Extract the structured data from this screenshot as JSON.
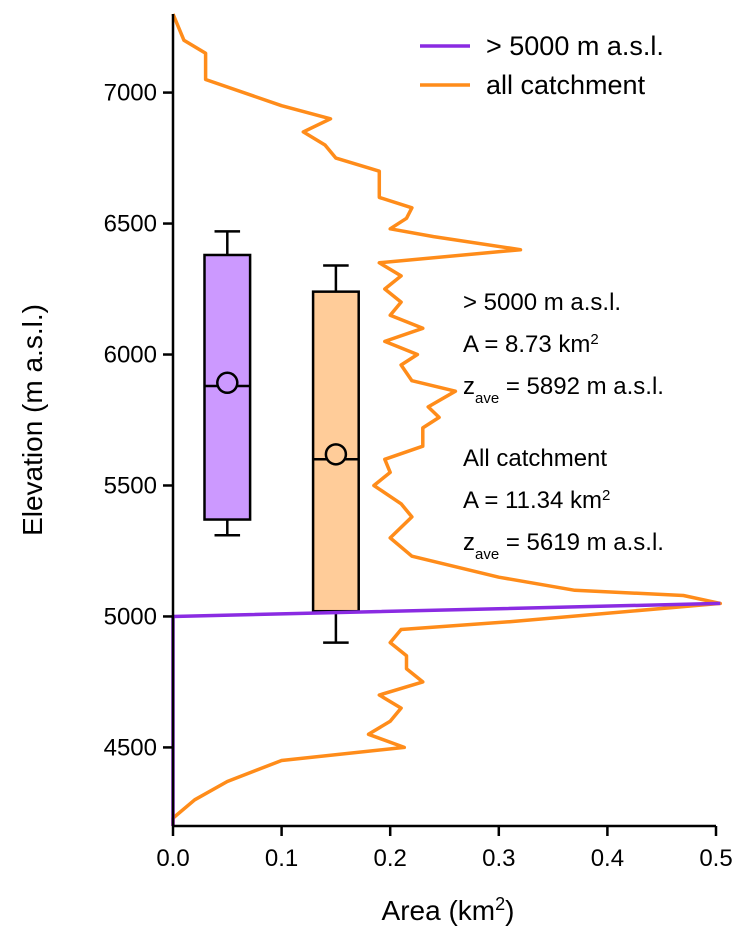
{
  "chart_data": {
    "type": "line",
    "orientation": "vertical-profile",
    "xlabel": "Area (km²)",
    "xlabel_main": "Area (km",
    "xlabel_sup": "2",
    "xlabel_close": ")",
    "ylabel": "Elevation (m a.s.l.)",
    "xlim": [
      0,
      0.5
    ],
    "ylim": [
      4200,
      7300
    ],
    "xticks": [
      0.0,
      0.1,
      0.2,
      0.3,
      0.4,
      0.5
    ],
    "xtick_labels": [
      "0.0",
      "0.1",
      "0.2",
      "0.3",
      "0.4",
      "0.5"
    ],
    "yticks": [
      4500,
      5000,
      5500,
      6000,
      6500,
      7000
    ],
    "ytick_labels": [
      "4500",
      "5000",
      "5500",
      "6000",
      "6500",
      "7000"
    ],
    "grid": false,
    "legend_position": "top-right",
    "series": [
      {
        "name": "> 5000 m a.s.l.",
        "color": "#8a2be2",
        "points": [
          [
            0.0,
            4200
          ],
          [
            0.0,
            5000
          ],
          [
            0.504,
            5050
          ]
        ]
      },
      {
        "name": "all catchment",
        "color": "#ff8c1a",
        "points": [
          [
            0.0,
            4200
          ],
          [
            0.0,
            4230
          ],
          [
            0.02,
            4300
          ],
          [
            0.05,
            4370
          ],
          [
            0.1,
            4450
          ],
          [
            0.213,
            4500
          ],
          [
            0.18,
            4550
          ],
          [
            0.2,
            4600
          ],
          [
            0.21,
            4650
          ],
          [
            0.19,
            4700
          ],
          [
            0.23,
            4750
          ],
          [
            0.215,
            4800
          ],
          [
            0.215,
            4850
          ],
          [
            0.2,
            4900
          ],
          [
            0.21,
            4950
          ],
          [
            0.31,
            4980
          ],
          [
            0.504,
            5050
          ],
          [
            0.47,
            5080
          ],
          [
            0.37,
            5100
          ],
          [
            0.3,
            5150
          ],
          [
            0.22,
            5230
          ],
          [
            0.2,
            5300
          ],
          [
            0.22,
            5380
          ],
          [
            0.21,
            5430
          ],
          [
            0.185,
            5500
          ],
          [
            0.2,
            5550
          ],
          [
            0.195,
            5600
          ],
          [
            0.23,
            5650
          ],
          [
            0.23,
            5720
          ],
          [
            0.245,
            5760
          ],
          [
            0.235,
            5800
          ],
          [
            0.26,
            5860
          ],
          [
            0.22,
            5900
          ],
          [
            0.21,
            5960
          ],
          [
            0.225,
            6000
          ],
          [
            0.195,
            6050
          ],
          [
            0.23,
            6100
          ],
          [
            0.2,
            6150
          ],
          [
            0.21,
            6200
          ],
          [
            0.195,
            6250
          ],
          [
            0.21,
            6300
          ],
          [
            0.19,
            6350
          ],
          [
            0.32,
            6400
          ],
          [
            0.24,
            6450
          ],
          [
            0.2,
            6480
          ],
          [
            0.215,
            6520
          ],
          [
            0.22,
            6560
          ],
          [
            0.19,
            6600
          ],
          [
            0.19,
            6700
          ],
          [
            0.15,
            6750
          ],
          [
            0.14,
            6800
          ],
          [
            0.12,
            6850
          ],
          [
            0.145,
            6900
          ],
          [
            0.1,
            6950
          ],
          [
            0.03,
            7050
          ],
          [
            0.03,
            7100
          ],
          [
            0.03,
            7150
          ],
          [
            0.01,
            7200
          ],
          [
            0.0,
            7300
          ]
        ]
      }
    ],
    "boxplots": [
      {
        "name": "> 5000 m a.s.l.",
        "x": 0.05,
        "fill": "#cc99ff",
        "whisker_low": 5310,
        "q1": 5370,
        "median": 5880,
        "q3": 6380,
        "whisker_high": 6470,
        "mean": 5892
      },
      {
        "name": "all catchment",
        "x": 0.15,
        "fill": "#ffcc99",
        "whisker_low": 4900,
        "q1": 5020,
        "median": 5600,
        "q3": 6240,
        "whisker_high": 6340,
        "mean": 5619
      }
    ],
    "annotations": {
      "above": {
        "title": "> 5000 m a.s.l.",
        "area_prefix": "A = 8.73 km",
        "area_sup": "2",
        "z_main": "z",
        "z_sub": "ave",
        "z_rest": " = 5892 m a.s.l."
      },
      "all": {
        "title": "All catchment",
        "area_prefix": "A = 11.34 km",
        "area_sup": "2",
        "z_main": "z",
        "z_sub": "ave",
        "z_rest": " = 5619 m a.s.l."
      }
    }
  }
}
